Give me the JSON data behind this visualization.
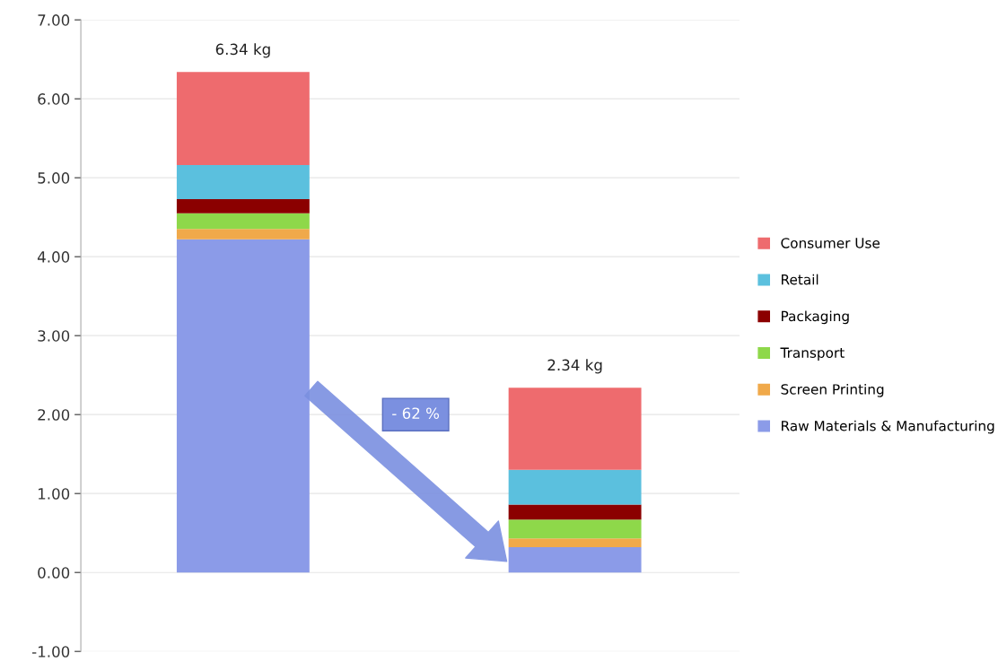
{
  "chart_data": {
    "type": "bar",
    "stacked": true,
    "categories": [
      null,
      null
    ],
    "series": [
      {
        "name": "Raw Materials & Manufacturing",
        "color": "#8b9be8",
        "values": [
          4.22,
          0.32
        ]
      },
      {
        "name": "Screen Printing",
        "color": "#f0a94a",
        "values": [
          0.13,
          0.11
        ]
      },
      {
        "name": "Transport",
        "color": "#8ed84a",
        "values": [
          0.2,
          0.24
        ]
      },
      {
        "name": "Packaging",
        "color": "#8b0000",
        "values": [
          0.18,
          0.19
        ]
      },
      {
        "name": "Retail",
        "color": "#5bc0de",
        "values": [
          0.43,
          0.44
        ]
      },
      {
        "name": "Consumer Use",
        "color": "#ee6b6e",
        "values": [
          1.18,
          1.04
        ]
      }
    ],
    "totals": [
      "6.34 kg",
      "2.34 kg"
    ],
    "annotations": [
      "- 62 %"
    ],
    "ylim": [
      -1,
      7
    ],
    "yticks": [
      {
        "value": -1,
        "label": "-1.00"
      },
      {
        "value": 0,
        "label": "0.00"
      },
      {
        "value": 1,
        "label": "1.00"
      },
      {
        "value": 2,
        "label": "2.00"
      },
      {
        "value": 3,
        "label": "3.00"
      },
      {
        "value": 4,
        "label": "4.00"
      },
      {
        "value": 5,
        "label": "5.00"
      },
      {
        "value": 6,
        "label": "6.00"
      },
      {
        "value": 7,
        "label": "7.00"
      }
    ],
    "grid": "y",
    "legend": "right",
    "tick_labels": "y"
  }
}
